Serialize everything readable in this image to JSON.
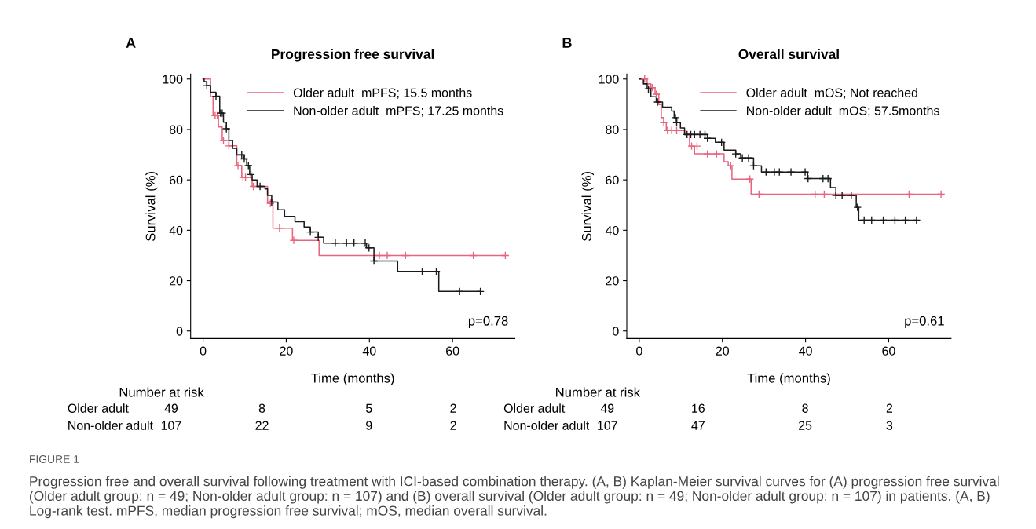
{
  "chart_data": [
    {
      "type": "step",
      "title": "Progression free survival",
      "xlabel": "Time (months)",
      "ylabel": "Survival (%)",
      "xlim": [
        -3,
        75
      ],
      "ylim": [
        -3,
        102
      ],
      "xticks": [
        0,
        20,
        40,
        60
      ],
      "yticks": [
        0,
        20,
        40,
        60,
        80,
        100
      ],
      "legend": "top right",
      "series": [
        {
          "name": "Older adult  mPFS; 15.5 months",
          "color": "#e8657f",
          "x": [
            0,
            1.8,
            2.4,
            3.7,
            4.6,
            6.2,
            8.1,
            9.3,
            11.8,
            15.5,
            16.8,
            21.5,
            27.9,
            72.7
          ],
          "values": [
            100,
            93,
            85.5,
            81,
            75.6,
            73.5,
            65.7,
            61,
            57.4,
            50.7,
            40.8,
            36,
            30,
            30
          ]
        },
        {
          "name": "Non-older adult  mPFS; 17.25 months",
          "color": "#1a1a1a",
          "x": [
            0,
            0.25,
            0.9,
            1.8,
            3.1,
            4.0,
            4.9,
            5.6,
            6.2,
            7.1,
            8.1,
            9.9,
            10.5,
            11.2,
            11.8,
            13.0,
            14.9,
            15.5,
            16.5,
            18.0,
            19.6,
            22.1,
            24.3,
            25.8,
            27.7,
            29.0,
            39.3,
            41.1,
            46.8,
            56.7,
            66.7
          ],
          "values": [
            100,
            99,
            97.4,
            94.8,
            93.2,
            86.5,
            82.9,
            80.3,
            75.6,
            72.5,
            69.9,
            68.3,
            65.7,
            62.1,
            60,
            57.4,
            56.4,
            53.8,
            51.2,
            48.1,
            45.5,
            43.4,
            41.3,
            39.3,
            37.2,
            34.9,
            33,
            27.8,
            23.7,
            15.7,
            15.7
          ]
        },
        {
          "color": "#e8657f",
          "type": "scatter",
          "marker": "cross",
          "x": [
            2.9,
            3.4,
            4.9,
            6.2,
            8.4,
            9.6,
            10.2,
            12.1,
            16.2,
            18.4,
            21.8,
            42.4,
            44.3,
            48.7,
            65.0,
            72.7
          ],
          "values": [
            85.5,
            85.5,
            75.6,
            73.5,
            65.7,
            61,
            61,
            57.4,
            50.7,
            40.8,
            36,
            30,
            30,
            30,
            30,
            30
          ]
        },
        {
          "color": "#1a1a1a",
          "type": "scatter",
          "marker": "cross",
          "x": [
            0.9,
            3.1,
            4.2,
            4.6,
            5.6,
            9.3,
            9.9,
            10.9,
            11.5,
            13.7,
            16.5,
            25.8,
            27.7,
            31.8,
            34.5,
            36.3,
            39.0,
            39.9,
            41.1,
            52.7,
            56.1,
            61.7,
            66.7
          ],
          "values": [
            97.4,
            93.2,
            86.5,
            86.5,
            80.3,
            69.9,
            68.3,
            65.7,
            62.1,
            57.4,
            51.2,
            39.3,
            37.2,
            34.9,
            34.9,
            34.9,
            34.9,
            33,
            27.8,
            23.7,
            23.7,
            15.7,
            15.7
          ]
        }
      ],
      "annotations": [
        "A",
        "p=0.78",
        "Number at risk",
        "Older adult",
        "49",
        "8",
        "5",
        "2",
        "Non-older adult",
        "107",
        "22",
        "9",
        "2",
        "FIGURE 1",
        "Progression free and overall survival following treatment with ICI-based combination therapy. (A, B) Kaplan-Meier survival curves for (A) progression free survival (Older adult group: n = 49; Non-older adult group: n = 107) and (B) overall survival (Older adult group: n = 49; Non-older adult group: n = 107) in patients. (A, B) Log-rank test. mPFS, median progression free survival; mOS, median overall survival."
      ]
    },
    {
      "type": "step",
      "title": "Overall survival",
      "xlabel": "Time (months)",
      "ylabel": "Survival (%)",
      "xlim": [
        -3,
        75
      ],
      "ylim": [
        -3,
        102
      ],
      "xticks": [
        0,
        20,
        40,
        60
      ],
      "yticks": [
        0,
        20,
        40,
        60,
        80,
        100
      ],
      "legend": "top right",
      "series": [
        {
          "name": "Older adult  mOS; Not reached",
          "color": "#e8657f",
          "x": [
            0,
            1.9,
            2.8,
            3.8,
            4.7,
            5.3,
            5.9,
            6.5,
            10.9,
            12.1,
            13.3,
            20.4,
            21.4,
            22.3,
            26.9,
            72.6
          ],
          "values": [
            100,
            98.1,
            96.6,
            94,
            89.9,
            84.7,
            82.7,
            79.6,
            78,
            73.4,
            70.3,
            67.2,
            65.6,
            60.3,
            54.3,
            54.3
          ]
        },
        {
          "name": "Non-older adult  mOS; 57.5months",
          "color": "#1a1a1a",
          "x": [
            0,
            1.0,
            1.9,
            2.8,
            4.1,
            5.6,
            7.8,
            8.4,
            9.0,
            9.9,
            10.9,
            16.4,
            18.3,
            20.4,
            23.2,
            24.4,
            27.5,
            29.4,
            40.5,
            46.0,
            47.3,
            52.2,
            52.8,
            66.7
          ],
          "values": [
            100,
            98.1,
            96.1,
            93,
            90.9,
            88.9,
            87.3,
            84.7,
            82.7,
            80.6,
            78,
            76.5,
            74.9,
            71.8,
            70.3,
            68.7,
            65.6,
            63.1,
            60.5,
            56.9,
            53.8,
            49.1,
            44,
            44
          ]
        },
        {
          "color": "#e8657f",
          "type": "scatter",
          "marker": "cross",
          "x": [
            1.3,
            3.1,
            4.1,
            5.9,
            6.8,
            7.8,
            9.0,
            12.6,
            13.9,
            16.4,
            18.6,
            22.0,
            26.6,
            28.8,
            42.3,
            44.5,
            64.9,
            72.6
          ],
          "values": [
            100,
            96.6,
            94,
            82.7,
            79.6,
            79.6,
            79.6,
            73.4,
            73.4,
            70.3,
            70.3,
            65.6,
            60.3,
            54.3,
            54.3,
            54.3,
            54.3,
            54.3
          ]
        },
        {
          "color": "#1a1a1a",
          "type": "scatter",
          "marker": "cross",
          "x": [
            2.2,
            4.4,
            8.7,
            9.0,
            11.5,
            12.4,
            13.3,
            14.6,
            15.8,
            16.4,
            19.8,
            23.2,
            24.8,
            26.3,
            27.5,
            30.5,
            32.5,
            33.7,
            36.5,
            39.9,
            40.6,
            44.2,
            45.4,
            47.3,
            48.8,
            51.0,
            52.5,
            54.1,
            55.9,
            58.7,
            61.5,
            64.0,
            66.7
          ],
          "values": [
            96.1,
            90.9,
            84.7,
            82.7,
            78,
            78,
            78,
            78,
            78,
            76.5,
            74.9,
            70.3,
            68.7,
            68.7,
            65.6,
            63.1,
            63.1,
            63.1,
            63.1,
            63.1,
            60.5,
            60.5,
            60.5,
            53.8,
            53.8,
            53.8,
            49.1,
            44,
            44,
            44,
            44,
            44,
            44
          ]
        }
      ],
      "annotations": [
        "B",
        "p=0.61",
        "Number at risk",
        "Older adult",
        "49",
        "16",
        "8",
        "2",
        "Non-older adult",
        "107",
        "47",
        "25",
        "3"
      ]
    }
  ]
}
